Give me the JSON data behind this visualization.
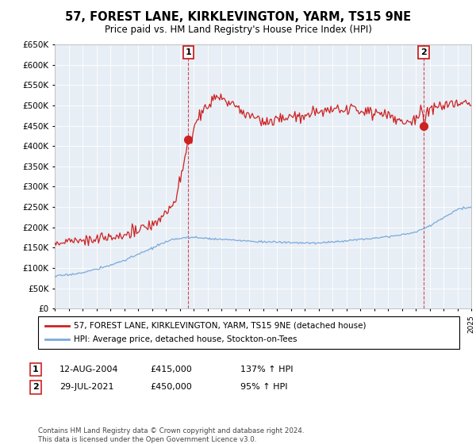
{
  "title": "57, FOREST LANE, KIRKLEVINGTON, YARM, TS15 9NE",
  "subtitle": "Price paid vs. HM Land Registry's House Price Index (HPI)",
  "legend_line1": "57, FOREST LANE, KIRKLEVINGTON, YARM, TS15 9NE (detached house)",
  "legend_line2": "HPI: Average price, detached house, Stockton-on-Tees",
  "sale1_label": "1",
  "sale1_date": "12-AUG-2004",
  "sale1_price": "£415,000",
  "sale1_hpi": "137% ↑ HPI",
  "sale2_label": "2",
  "sale2_date": "29-JUL-2021",
  "sale2_price": "£450,000",
  "sale2_hpi": "95% ↑ HPI",
  "footnote": "Contains HM Land Registry data © Crown copyright and database right 2024.\nThis data is licensed under the Open Government Licence v3.0.",
  "ylim": [
    0,
    650000
  ],
  "xlim_start": 1995,
  "xlim_end": 2025,
  "red_color": "#cc2222",
  "blue_color": "#7aaadd",
  "sale1_x": 2004.62,
  "sale1_y": 415000,
  "sale2_x": 2021.58,
  "sale2_y": 450000,
  "background_color": "#ffffff",
  "plot_bg_color": "#e8eef5",
  "grid_color": "#ffffff"
}
